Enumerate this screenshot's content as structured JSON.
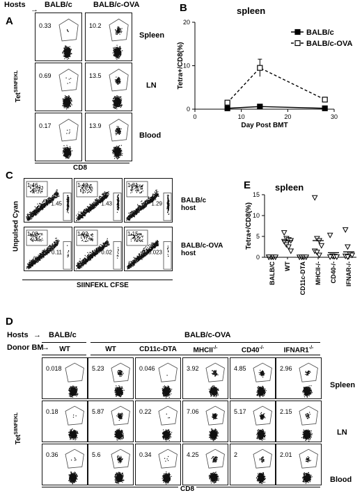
{
  "panel_letters": [
    "A",
    "B",
    "C",
    "D",
    "E"
  ],
  "panel_a": {
    "hosts_label": "Hosts",
    "hosts": [
      "BALB/c",
      "BALB/c-OVA"
    ],
    "organs": [
      "Spleen",
      "LN",
      "Blood"
    ],
    "values": [
      [
        "0.33",
        "10.2"
      ],
      [
        "0.69",
        "13.5"
      ],
      [
        "0.17",
        "13.9"
      ]
    ],
    "ylabel": "Tet",
    "ylabel_sup": "SIINFEKL",
    "xlabel": "CD8"
  },
  "panel_c": {
    "gate_values": [
      [
        "1.46",
        "1.42",
        "1.31"
      ],
      [
        "1.08",
        "1.02",
        "1.15"
      ]
    ],
    "side_values": [
      [
        "1.45",
        "1.43",
        "1.29"
      ],
      [
        "0.11",
        "0.02",
        "0.023"
      ]
    ],
    "row_labels": [
      [
        "BALB/c",
        "host"
      ],
      [
        "BALB/c-OVA",
        "host"
      ]
    ],
    "ylabel": "Unpulsed Cyan",
    "xlabel": "SIINFEKL CFSE"
  },
  "panel_d": {
    "hosts_label": "Hosts",
    "donor_label": "Donor BM",
    "host_groups": [
      "BALB/c",
      "BALB/c-OVA"
    ],
    "donors": [
      {
        "base": "WT",
        "sup": ""
      },
      {
        "base": "WT",
        "sup": ""
      },
      {
        "base": "CD11c-DTA",
        "sup": ""
      },
      {
        "base": "MHCII",
        "sup": "-/-"
      },
      {
        "base": "CD40",
        "sup": "-/-"
      },
      {
        "base": "IFNAR1",
        "sup": "-/-"
      }
    ],
    "organs": [
      "Spleen",
      "LN",
      "Blood"
    ],
    "values": [
      [
        "0.018",
        "5.23",
        "0.046",
        "3.92",
        "4.85",
        "2.96"
      ],
      [
        "0.18",
        "5.87",
        "0.22",
        "7.06",
        "5.17",
        "2.15"
      ],
      [
        "0.36",
        "5.6",
        "0.34",
        "4.25",
        "2",
        "2.01"
      ]
    ],
    "ylabel": "Tet",
    "ylabel_sup": "SIINFEKL",
    "xlabel": "CD8"
  },
  "chart_data": [
    {
      "type": "line",
      "title": "spleen",
      "xlabel": "Day Post BMT",
      "ylabel": "Tetra+/CD8(%)",
      "xlim": [
        0,
        30
      ],
      "ylim": [
        0,
        20
      ],
      "xticks": [
        0,
        10,
        20,
        30
      ],
      "yticks": [
        0,
        10,
        20
      ],
      "legend_position": "top-right",
      "series": [
        {
          "name": "BALB/c",
          "style": "solid",
          "marker": "filled-square",
          "x": [
            7,
            14,
            28
          ],
          "y": [
            0.2,
            0.6,
            0.2
          ],
          "err": [
            0.1,
            0.2,
            0.1
          ]
        },
        {
          "name": "BALB/c-OVA",
          "style": "dashed",
          "marker": "open-square",
          "x": [
            7,
            14,
            28
          ],
          "y": [
            1.5,
            9.5,
            2.2
          ],
          "err": [
            0.3,
            2.0,
            0.3
          ]
        }
      ]
    },
    {
      "type": "scatter",
      "title": "spleen",
      "ylabel": "Tetra+/CD8(%)",
      "ylim": [
        0,
        15
      ],
      "yticks": [
        0,
        5,
        10,
        15
      ],
      "marker": "open-triangle-down",
      "categories": [
        "BALB/C",
        "WT",
        "CD11c-DTA",
        "MHCII-/-",
        "CD40-/-",
        "IFNAR-/-"
      ],
      "points": [
        [
          0.05,
          0.05,
          0.05,
          0.05,
          0.05
        ],
        [
          5.9,
          4.5,
          4.2,
          4.0,
          3.8,
          3.0,
          2.5,
          1.5
        ],
        [
          0.05,
          0.05,
          0.05,
          0.05
        ],
        [
          14.3,
          4.5,
          4.0,
          2.8,
          1.5,
          1.2,
          0.5
        ],
        [
          5.3,
          0.3,
          0.2,
          0.1,
          0.1
        ],
        [
          6.6,
          2.5,
          0.8,
          0.5,
          0.3,
          0.1
        ]
      ],
      "means": [
        0.05,
        4.0,
        0.05,
        4.0,
        1.1,
        1.3
      ]
    }
  ]
}
